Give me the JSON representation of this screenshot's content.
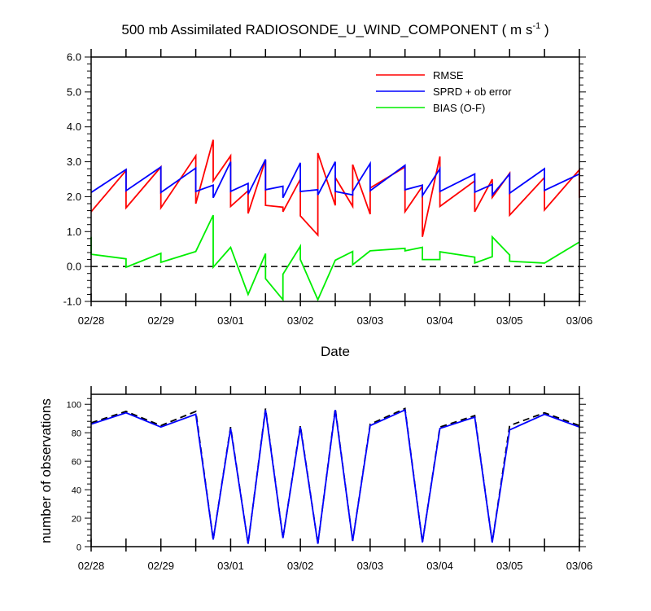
{
  "chart_data": [
    {
      "type": "line",
      "title": "500 mb Assimilated RADIOSONDE_U_WIND_COMPONENT ( m s",
      "title_superscript": "-1",
      "title_close": " )",
      "xlabel": "Date",
      "ylabel": "",
      "xlim": [
        0,
        7
      ],
      "ylim": [
        -1.0,
        6.0
      ],
      "ytick_values": [
        -1,
        0,
        1,
        2,
        3,
        4,
        5,
        6
      ],
      "ytick_labels": [
        "-1.0",
        "0.0",
        "1.0",
        "2.0",
        "3.0",
        "4.0",
        "5.0",
        "6.0"
      ],
      "xtick_values": [
        0,
        1,
        2,
        3,
        4,
        5,
        6,
        7
      ],
      "xtick_labels": [
        "02/28",
        "02/29",
        "03/01",
        "03/02",
        "03/03",
        "03/04",
        "03/05",
        "03/06"
      ],
      "zero_line": "dashed",
      "legend": [
        "RMSE",
        "SPRD + ob error",
        "BIAS (O-F)"
      ],
      "legend_placement": "top-right",
      "colors": {
        "rmse": "#ff0000",
        "sprd": "#0000ff",
        "bias": "#00ee00",
        "zero": "#000000"
      },
      "series": [
        {
          "name": "RMSE",
          "x": [
            0,
            0.5,
            0.5,
            1,
            1,
            1.5,
            1.5,
            1.75,
            1.75,
            2,
            2,
            2.25,
            2.25,
            2.5,
            2.5,
            2.75,
            2.75,
            3,
            3,
            3.25,
            3.25,
            3.5,
            3.5,
            3.75,
            3.75,
            4,
            4,
            4.5,
            4.5,
            4.75,
            4.75,
            5,
            5,
            5.5,
            5.5,
            5.75,
            5.75,
            6,
            6,
            6.5,
            6.5,
            7,
            7
          ],
          "values": [
            1.57,
            2.75,
            1.68,
            2.85,
            1.68,
            3.17,
            1.8,
            3.63,
            2.45,
            3.17,
            1.72,
            2.17,
            1.52,
            3.05,
            1.75,
            1.7,
            1.57,
            2.5,
            1.45,
            0.9,
            3.25,
            1.75,
            2.55,
            1.72,
            2.92,
            1.5,
            2.25,
            2.85,
            1.57,
            2.3,
            0.85,
            3.15,
            1.72,
            2.45,
            1.57,
            2.5,
            1.98,
            2.67,
            1.47,
            2.55,
            1.62,
            2.77,
            1.97
          ]
        },
        {
          "name": "SPRD + ob error",
          "x": [
            0,
            0.5,
            0.5,
            1,
            1,
            1.5,
            1.5,
            1.75,
            1.75,
            2,
            2,
            2.25,
            2.25,
            2.5,
            2.5,
            2.75,
            2.75,
            3,
            3,
            3.25,
            3.25,
            3.5,
            3.5,
            3.75,
            3.75,
            4,
            4,
            4.5,
            4.5,
            4.75,
            4.75,
            5,
            5,
            5.5,
            5.5,
            5.75,
            5.75,
            6,
            6,
            6.5,
            6.5,
            7
          ],
          "values": [
            2.12,
            2.78,
            2.17,
            2.85,
            2.12,
            2.82,
            2.15,
            2.33,
            1.97,
            3.0,
            2.15,
            2.38,
            2.07,
            3.07,
            2.2,
            2.3,
            1.97,
            2.97,
            2.15,
            2.2,
            2.05,
            3.0,
            2.15,
            2.05,
            2.15,
            2.95,
            2.17,
            2.9,
            2.2,
            2.33,
            2.03,
            2.8,
            2.15,
            2.65,
            2.13,
            2.35,
            2.05,
            2.65,
            2.1,
            2.8,
            2.18,
            2.65
          ]
        },
        {
          "name": "BIAS (O-F)",
          "x": [
            0,
            0,
            0.5,
            0.5,
            1,
            1,
            1.5,
            1.75,
            1.75,
            2,
            2.25,
            2.5,
            2.5,
            2.75,
            2.75,
            3,
            3,
            3.25,
            3.5,
            3.75,
            3.75,
            4,
            4.5,
            4.5,
            4.75,
            4.75,
            5,
            5,
            5.5,
            5.5,
            5.75,
            5.75,
            6,
            6,
            6.5,
            7
          ],
          "values": [
            0.85,
            0.35,
            0.22,
            -0.02,
            0.38,
            0.12,
            0.43,
            1.47,
            -0.02,
            0.55,
            -0.8,
            0.37,
            -0.35,
            -0.95,
            -0.22,
            0.58,
            0.2,
            -0.95,
            0.18,
            0.43,
            0.05,
            0.45,
            0.52,
            0.45,
            0.55,
            0.2,
            0.2,
            0.42,
            0.27,
            0.1,
            0.28,
            0.85,
            0.33,
            0.15,
            0.1,
            0.7
          ]
        }
      ]
    },
    {
      "type": "line",
      "title": "",
      "xlabel": "",
      "ylabel": "number of observations",
      "xlim": [
        0,
        7
      ],
      "ylim": [
        0,
        107
      ],
      "ytick_values": [
        0,
        20,
        40,
        60,
        80,
        100
      ],
      "ytick_labels": [
        "0",
        "20",
        "40",
        "60",
        "80",
        "100"
      ],
      "xtick_values": [
        0,
        1,
        2,
        3,
        4,
        5,
        6,
        7
      ],
      "xtick_labels": [
        "02/28",
        "02/29",
        "03/01",
        "03/02",
        "03/03",
        "03/04",
        "03/05",
        "03/06"
      ],
      "colors": {
        "used": "#0000ff",
        "possible": "#000000"
      },
      "series": [
        {
          "name": "possible",
          "style": "dashed",
          "x": [
            0,
            0.5,
            1,
            1.5,
            1.75,
            2,
            2.25,
            2.5,
            2.75,
            3,
            3.25,
            3.5,
            3.75,
            4,
            4.5,
            4.75,
            5,
            5.5,
            5.75,
            6,
            6.5,
            7
          ],
          "values": [
            87,
            95,
            85,
            95,
            5,
            84,
            2,
            97,
            6,
            85,
            2,
            97,
            4,
            86,
            97,
            3,
            84,
            92,
            3,
            85,
            94,
            85
          ]
        },
        {
          "name": "used",
          "style": "solid",
          "x": [
            0,
            0.5,
            1,
            1.5,
            1.75,
            2,
            2.25,
            2.5,
            2.75,
            3,
            3.25,
            3.5,
            3.75,
            4,
            4.5,
            4.75,
            5,
            5.5,
            5.75,
            6,
            6.5,
            7
          ],
          "values": [
            86,
            94,
            84,
            93,
            5,
            83,
            2,
            96,
            6,
            84,
            2,
            96,
            4,
            85,
            96,
            3,
            83,
            91,
            3,
            82,
            93,
            84
          ]
        }
      ]
    }
  ]
}
